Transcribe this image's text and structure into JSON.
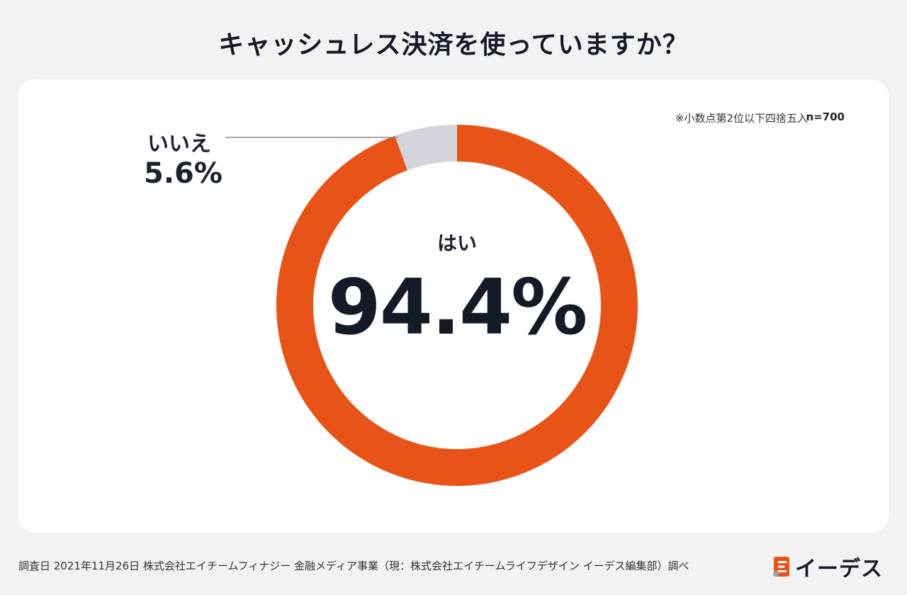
{
  "title": "キャッシュレス決済を使っていますか？",
  "note": "※小数点第2位以下四捨五入",
  "sample": "n=700",
  "chart_data": {
    "type": "pie",
    "categories": [
      "はい",
      "いいえ"
    ],
    "values": [
      94.4,
      5.6
    ],
    "value_labels": [
      "94.4%",
      "5.6%"
    ],
    "colors": [
      "#e85417",
      "#d2d5db"
    ],
    "donut": true
  },
  "footer": "調査日 2021年11月26日  株式会社エイチームフィナジー 金融メディア事業（現：株式会社エイチームライフデザイン イーデス編集部）調べ",
  "logo": {
    "text": "イーデス",
    "color": "#e85417"
  }
}
